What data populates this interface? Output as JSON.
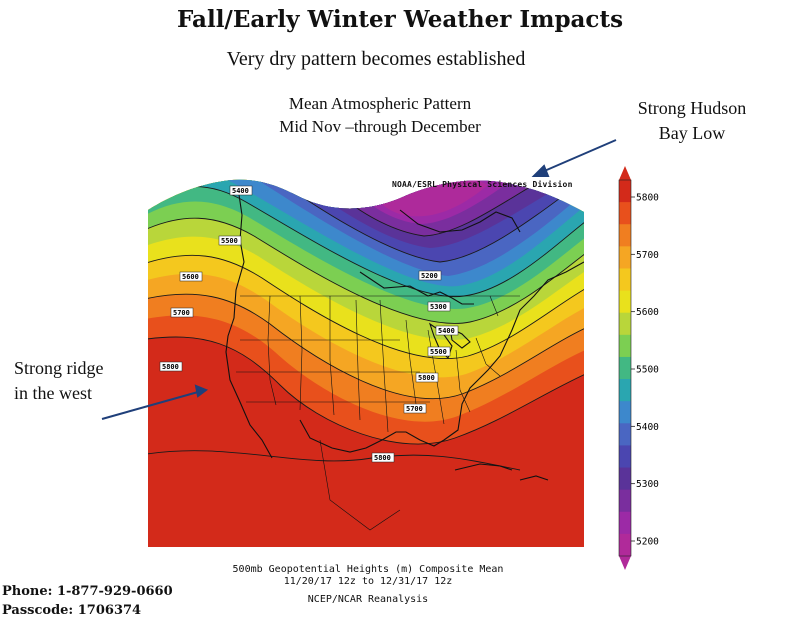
{
  "slide": {
    "title": "Fall/Early Winter Weather Impacts",
    "subtitle": "Very dry pattern becomes established",
    "pattern_line1": "Mean Atmospheric Pattern",
    "pattern_line2": "Mid Nov –through December",
    "annotation_right_line1": "Strong Hudson",
    "annotation_right_line2": "Bay Low",
    "annotation_left_line1": "Strong ridge",
    "annotation_left_line2": "in the west",
    "phone": "Phone:  1-877-929-0660",
    "passcode": "Passcode: 1706374"
  },
  "map": {
    "credit": "NOAA/ESRL Physical Sciences Division",
    "footer_line1": "500mb Geopotential Heights (m)    Composite Mean",
    "footer_line2": "11/20/17 12z  to 12/31/17 12z",
    "footer_line3": "NCEP/NCAR Reanalysis",
    "contour_labels": [
      "5400",
      "5500",
      "5600",
      "5700",
      "5800",
      "5200",
      "5300",
      "5400",
      "5500",
      "5800",
      "5700",
      "5800"
    ],
    "colorbar": {
      "ticks": [
        "5800",
        "5700",
        "5600",
        "5500",
        "5400",
        "5300",
        "5200"
      ],
      "colors": [
        "#d32a1a",
        "#e8501c",
        "#f07e20",
        "#f5a623",
        "#f4c81e",
        "#e9e11c",
        "#b9d63a",
        "#7ccf52",
        "#42b883",
        "#2aa6b0",
        "#3d88cc",
        "#4a66c2",
        "#4b46b0",
        "#5a3399",
        "#7a2e9e",
        "#9c2aa6",
        "#b02a9a"
      ]
    }
  }
}
